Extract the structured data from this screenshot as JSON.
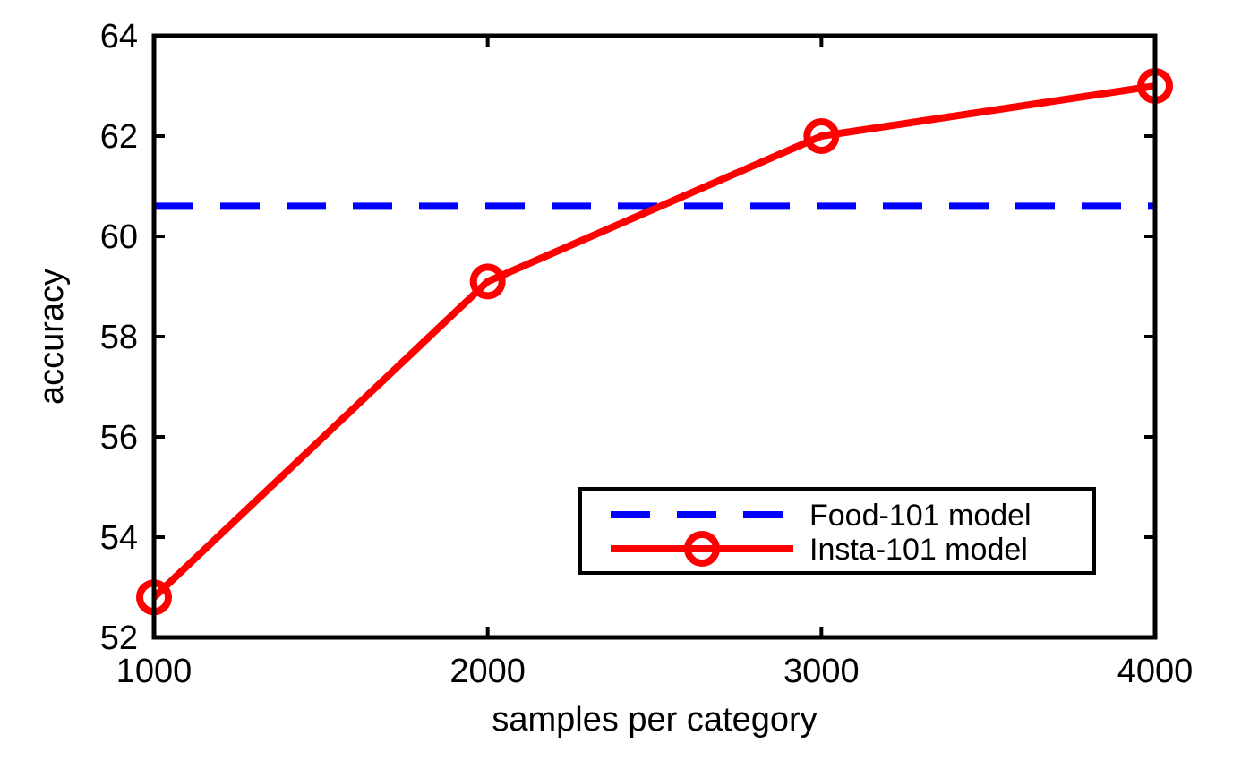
{
  "chart_data": {
    "type": "line",
    "title": "",
    "xlabel": "samples per category",
    "ylabel": "accuracy",
    "xlim": [
      1000,
      4000
    ],
    "ylim": [
      52,
      64
    ],
    "x_ticks": [
      1000,
      2000,
      3000,
      4000
    ],
    "y_ticks": [
      52,
      54,
      56,
      58,
      60,
      62,
      64
    ],
    "grid": false,
    "legend_position": "bottom-right",
    "series": [
      {
        "name": "Food-101 model",
        "style": "dashed",
        "marker": "none",
        "color": "#0000ff",
        "x": [
          1000,
          4000
        ],
        "y": [
          60.6,
          60.6
        ]
      },
      {
        "name": "Insta-101 model",
        "style": "solid",
        "marker": "circle",
        "color": "#ff0000",
        "x": [
          1000,
          2000,
          3000,
          4000
        ],
        "y": [
          52.8,
          59.1,
          62.0,
          63.0
        ]
      }
    ]
  }
}
